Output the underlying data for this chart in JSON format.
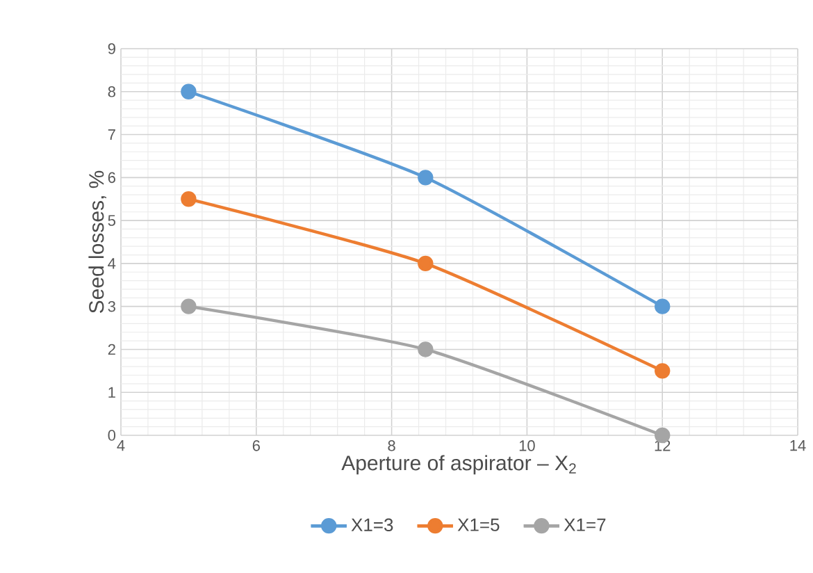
{
  "chart_data": {
    "type": "line",
    "xlabel": "Aperture of aspirator – X$_{2}$",
    "ylabel": "Seed losses, %",
    "x": [
      5,
      8.5,
      12
    ],
    "series": [
      {
        "name": "X1=3",
        "color": "#5b9bd5",
        "values": [
          8,
          6,
          3
        ]
      },
      {
        "name": "X1=5",
        "color": "#ed7d31",
        "values": [
          5.5,
          4,
          1.5
        ]
      },
      {
        "name": "X1=7",
        "color": "#a5a5a5",
        "values": [
          3,
          2,
          0
        ]
      }
    ],
    "xlim": [
      4,
      14
    ],
    "xticks": [
      4,
      6,
      8,
      10,
      12,
      14
    ],
    "ylim": [
      0,
      9
    ],
    "yticks": [
      0,
      1,
      2,
      3,
      4,
      5,
      6,
      7,
      8,
      9
    ],
    "grid": true,
    "legend": "bottom",
    "marker": "circle",
    "line_style": "solid"
  }
}
